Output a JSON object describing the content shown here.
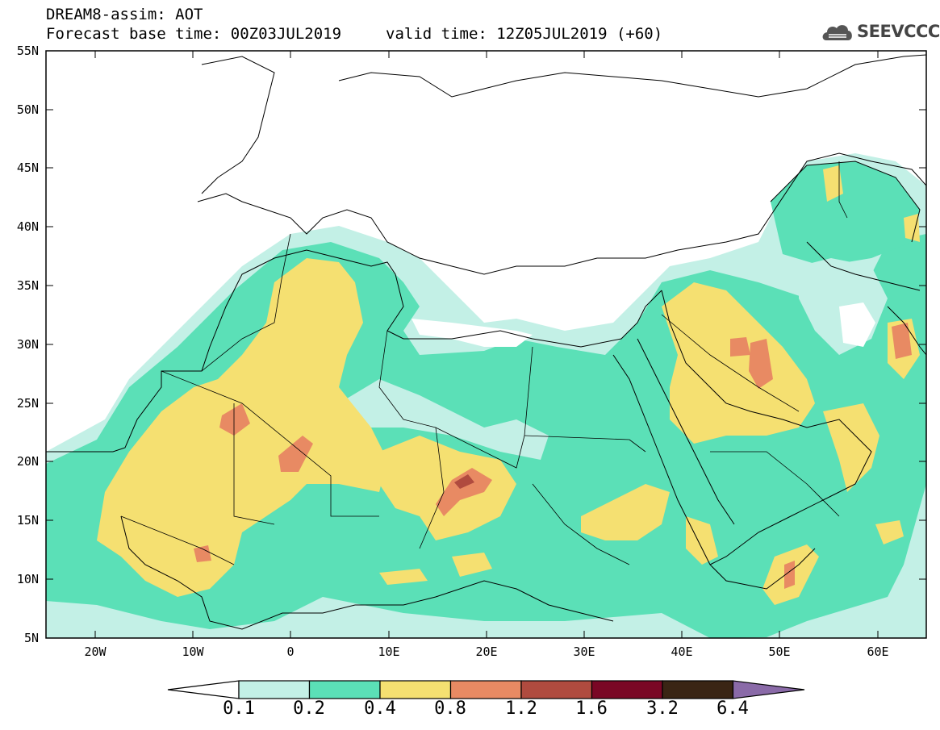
{
  "header": {
    "title": "DREAM8-assim: AOT",
    "base_time": "Forecast base time: 00Z03JUL2019",
    "valid_time": "valid time: 12Z05JUL2019 (+60)",
    "logo_text": "SEEVCCC"
  },
  "map": {
    "variable": "AOT",
    "extent": {
      "lon": [
        -25,
        65
      ],
      "lat": [
        5,
        55
      ]
    },
    "lat_labels": [
      "55N",
      "50N",
      "45N",
      "40N",
      "35N",
      "30N",
      "25N",
      "20N",
      "15N",
      "10N",
      "5N"
    ],
    "lon_labels": [
      "20W",
      "10W",
      "0",
      "10E",
      "20E",
      "30E",
      "40E",
      "50E",
      "60E"
    ]
  },
  "colorbar": {
    "levels": [
      "0.1",
      "0.2",
      "0.4",
      "0.8",
      "1.2",
      "1.6",
      "3.2",
      "6.4"
    ],
    "colors": [
      "#ffffff",
      "#c3f0e6",
      "#5be0b7",
      "#f5e071",
      "#e88a63",
      "#b04b3f",
      "#7a0725",
      "#3a2514",
      "#8a6aa8"
    ]
  }
}
